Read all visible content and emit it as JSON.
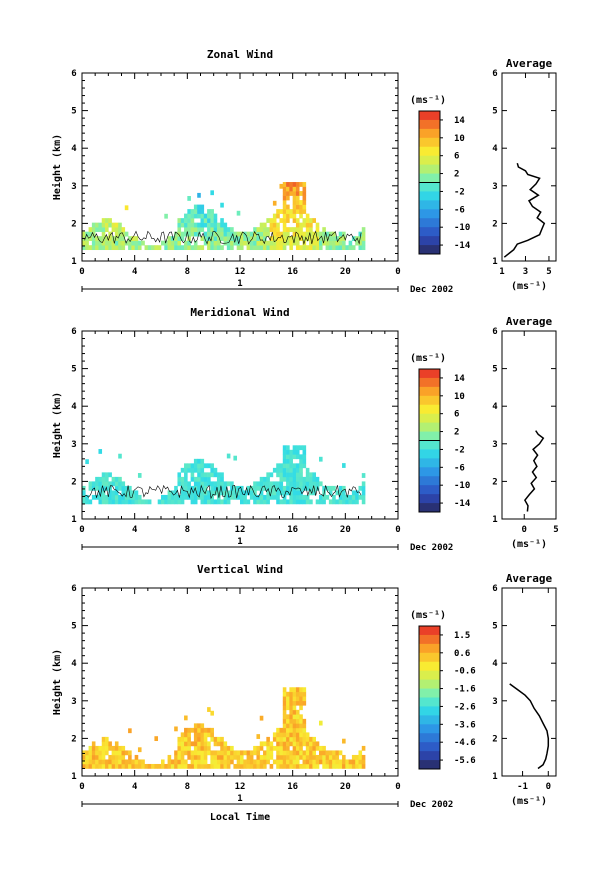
{
  "chart_data": [
    {
      "type": "heatmap",
      "title": "Zonal Wind",
      "xlabel": "",
      "ylabel": "Height (km)",
      "xlim": [
        0,
        24
      ],
      "ylim": [
        1,
        6
      ],
      "x_ticks": [
        "0",
        "4",
        "8",
        "12",
        "16",
        "20",
        "0"
      ],
      "y_ticks": [
        "1",
        "2",
        "3",
        "4",
        "5",
        "6"
      ],
      "date_bar_label": "1",
      "date_label": "Dec 2002",
      "colorbar": {
        "unit": "(ms⁻¹)",
        "labels": [
          "14",
          "10",
          "6",
          "2",
          "-2",
          "-6",
          "-10",
          "-14"
        ],
        "range": [
          -16,
          16
        ],
        "contour_line": 0
      },
      "profile": {
        "title": "Average",
        "xlabel": "(ms⁻¹)",
        "x_ticks": [
          "1",
          "3",
          "5"
        ],
        "xlim": [
          1,
          5.6
        ],
        "heights": [
          1.1,
          1.3,
          1.45,
          1.55,
          1.7,
          1.85,
          2.0,
          2.15,
          2.3,
          2.45,
          2.6,
          2.75,
          2.9,
          3.05,
          3.2,
          3.3,
          3.4,
          3.5,
          3.6
        ],
        "values": [
          1.2,
          2.0,
          2.3,
          3.2,
          4.2,
          4.4,
          4.6,
          4.0,
          4.3,
          3.6,
          3.3,
          4.1,
          3.4,
          3.9,
          4.2,
          3.2,
          3.0,
          2.4,
          2.3
        ]
      },
      "data_extent": {
        "time": [
          0,
          21.5
        ],
        "height": [
          1.3,
          3.1
        ]
      }
    },
    {
      "type": "heatmap",
      "title": "Meridional Wind",
      "xlabel": "",
      "ylabel": "Height (km)",
      "xlim": [
        0,
        24
      ],
      "ylim": [
        1,
        6
      ],
      "x_ticks": [
        "0",
        "4",
        "8",
        "12",
        "16",
        "20",
        "0"
      ],
      "y_ticks": [
        "1",
        "2",
        "3",
        "4",
        "5",
        "6"
      ],
      "date_bar_label": "1",
      "date_label": "Dec 2002",
      "colorbar": {
        "unit": "(ms⁻¹)",
        "labels": [
          "14",
          "10",
          "6",
          "2",
          "-2",
          "-6",
          "-10",
          "-14"
        ],
        "range": [
          -16,
          16
        ],
        "contour_line": 0
      },
      "profile": {
        "title": "Average",
        "xlabel": "(ms⁻¹)",
        "x_ticks": [
          "0",
          "5"
        ],
        "xlim": [
          -3.5,
          5
        ],
        "heights": [
          1.2,
          1.35,
          1.5,
          1.65,
          1.8,
          1.95,
          2.1,
          2.25,
          2.4,
          2.55,
          2.7,
          2.85,
          3.0,
          3.15,
          3.25,
          3.35
        ],
        "values": [
          0.5,
          0.6,
          0.1,
          0.8,
          1.6,
          1.1,
          1.9,
          1.3,
          2.0,
          1.5,
          2.1,
          1.4,
          2.4,
          3.0,
          2.2,
          1.8
        ]
      },
      "data_extent": {
        "time": [
          0,
          21.5
        ],
        "height": [
          1.4,
          2.9
        ]
      }
    },
    {
      "type": "heatmap",
      "title": "Vertical Wind",
      "xlabel": "Local Time",
      "ylabel": "Height (km)",
      "xlim": [
        0,
        24
      ],
      "ylim": [
        1,
        6
      ],
      "x_ticks": [
        "0",
        "4",
        "8",
        "12",
        "16",
        "20",
        "0"
      ],
      "y_ticks": [
        "1",
        "2",
        "3",
        "4",
        "5",
        "6"
      ],
      "date_bar_label": "1",
      "date_label": "Dec 2002",
      "colorbar": {
        "unit": "(ms⁻¹)",
        "labels": [
          "1.5",
          "0.6",
          "-0.6",
          "-1.6",
          "-2.6",
          "-3.6",
          "-4.6",
          "-5.6"
        ],
        "range": [
          -6,
          2
        ]
      },
      "profile": {
        "title": "Average",
        "xlabel": "(ms⁻¹)",
        "x_ticks": [
          "-1",
          "0"
        ],
        "xlim": [
          -1.8,
          0.3
        ],
        "heights": [
          1.2,
          1.3,
          1.45,
          1.6,
          1.8,
          2.0,
          2.2,
          2.4,
          2.6,
          2.8,
          3.0,
          3.15,
          3.3,
          3.45
        ],
        "values": [
          -0.4,
          -0.2,
          -0.1,
          -0.05,
          0.0,
          0.0,
          -0.05,
          -0.2,
          -0.35,
          -0.55,
          -0.7,
          -0.9,
          -1.2,
          -1.5
        ]
      },
      "data_extent": {
        "time": [
          0,
          21.5
        ],
        "height": [
          1.2,
          3.3
        ]
      }
    }
  ]
}
